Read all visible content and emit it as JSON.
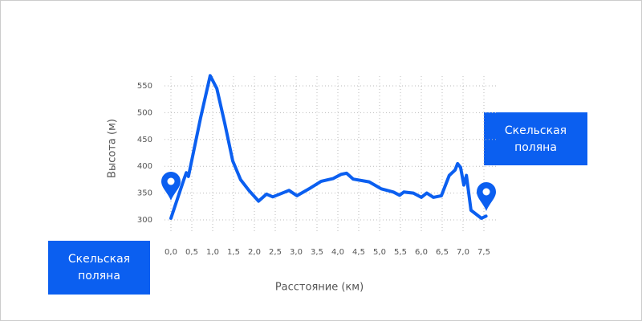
{
  "chart_data": {
    "type": "line",
    "x_label": "Расстояние (км)",
    "y_label": "Высота (м)",
    "x": [
      0.0,
      0.3,
      0.37,
      0.42,
      0.71,
      0.94,
      1.1,
      1.29,
      1.48,
      1.67,
      1.87,
      2.1,
      2.29,
      2.44,
      2.73,
      2.83,
      3.02,
      3.31,
      3.6,
      3.88,
      4.08,
      4.21,
      4.37,
      4.75,
      5.04,
      5.33,
      5.48,
      5.58,
      5.81,
      6.0,
      6.13,
      6.29,
      6.48,
      6.67,
      6.81,
      6.87,
      6.94,
      7.02,
      7.08,
      7.19,
      7.44,
      7.55
    ],
    "values": [
      303,
      373,
      388,
      381,
      490,
      569,
      545,
      480,
      410,
      375,
      355,
      335,
      348,
      343,
      352,
      355,
      345,
      358,
      372,
      377,
      385,
      387,
      376,
      371,
      358,
      352,
      346,
      352,
      350,
      342,
      350,
      342,
      345,
      383,
      393,
      405,
      398,
      365,
      383,
      318,
      303,
      307
    ],
    "color": "#0b5ff0",
    "xlim": [
      0,
      7.5
    ],
    "ylim": [
      300,
      550
    ],
    "xticks": [
      {
        "value": 0,
        "label": "0,0"
      },
      {
        "value": 0.5,
        "label": "0,5"
      },
      {
        "value": 1,
        "label": "1,0"
      },
      {
        "value": 1.5,
        "label": "1,5"
      },
      {
        "value": 2,
        "label": "2,0"
      },
      {
        "value": 2.5,
        "label": "2,5"
      },
      {
        "value": 3,
        "label": "3,0"
      },
      {
        "value": 3.5,
        "label": "3,5"
      },
      {
        "value": 4,
        "label": "4,0"
      },
      {
        "value": 4.5,
        "label": "4,5"
      },
      {
        "value": 5,
        "label": "5,0"
      },
      {
        "value": 5.5,
        "label": "5,5"
      },
      {
        "value": 6,
        "label": "6,0"
      },
      {
        "value": 6.5,
        "label": "6,5"
      },
      {
        "value": 7,
        "label": "7,0"
      },
      {
        "value": 7.5,
        "label": "7,5"
      }
    ],
    "yticks": [
      300,
      350,
      400,
      450,
      500,
      550
    ],
    "grid": true,
    "annotations": [
      {
        "lines": [
          "Скельская",
          "поляна"
        ]
      },
      {
        "lines": [
          "Скельская",
          "поляна"
        ]
      }
    ]
  }
}
